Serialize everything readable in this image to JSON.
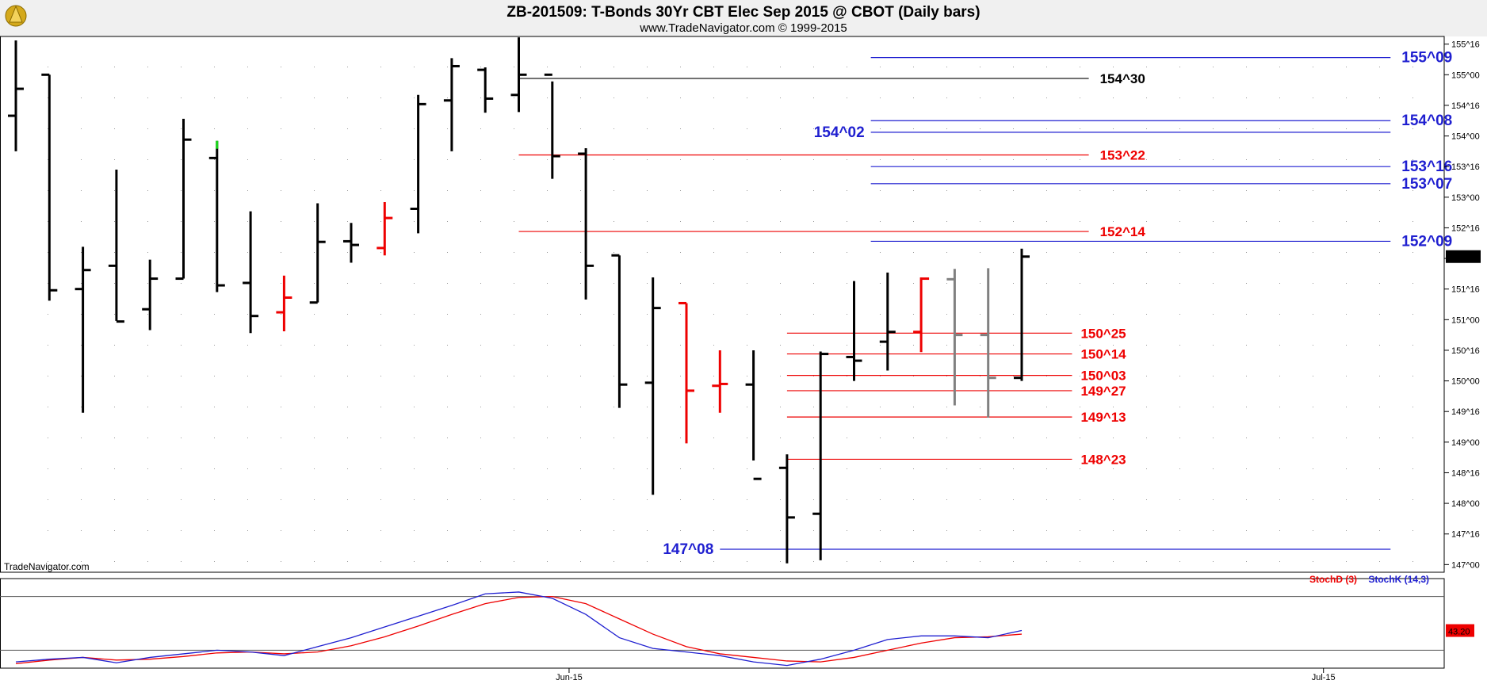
{
  "header": {
    "title": "ZB-201509:  T-Bonds 30Yr CBT Elec Sep 2015 @ CBOT  (Daily bars)",
    "subtitle": "www.TradeNavigator.com © 1999-2015"
  },
  "watermark": "TradeNavigator.com",
  "colors": {
    "bar_normal": "#000000",
    "bar_red": "#ee0000",
    "bar_gray": "#808080",
    "level_red": "#ee0000",
    "level_blue": "#1f1fd0",
    "level_black": "#000000",
    "stochK": "#1f1fd0",
    "stochD": "#ee0000"
  },
  "chart_data": {
    "type": "ohlc",
    "title": "ZB-201509:  T-Bonds 30Yr CBT Elec Sep 2015 @ CBOT  (Daily bars)",
    "price_axis": {
      "ylim": [
        146.875,
        155.625
      ],
      "tick_labels": [
        "155^16",
        "155^00",
        "154^16",
        "154^00",
        "153^16",
        "153^00",
        "152^16",
        "152^00",
        "151^16",
        "151^00",
        "150^16",
        "150^00",
        "149^16",
        "149^00",
        "148^16",
        "148^00",
        "147^16",
        "147^00"
      ],
      "tick_values": [
        155.5,
        155.0,
        154.5,
        154.0,
        153.5,
        153.0,
        152.5,
        152.0,
        151.5,
        151.0,
        150.5,
        150.0,
        149.5,
        149.0,
        148.5,
        148.0,
        147.5,
        147.0
      ]
    },
    "last_price": {
      "label": "152^01",
      "value": 152.03
    },
    "x_labels": [
      {
        "label": "Jun-15",
        "bar": 16.5
      },
      {
        "label": "Jul-15",
        "bar": 39
      }
    ],
    "bars": [
      {
        "o": 154.33,
        "h": 155.56,
        "l": 153.75,
        "c": 154.77,
        "color": "black"
      },
      {
        "o": 155.0,
        "h": 155.0,
        "l": 151.31,
        "c": 151.48,
        "color": "black"
      },
      {
        "o": 151.5,
        "h": 152.19,
        "l": 149.48,
        "c": 151.81,
        "color": "black"
      },
      {
        "o": 151.88,
        "h": 153.45,
        "l": 150.98,
        "c": 150.97,
        "color": "black"
      },
      {
        "o": 151.17,
        "h": 151.98,
        "l": 150.83,
        "c": 151.67,
        "color": "black"
      },
      {
        "o": 151.67,
        "h": 154.28,
        "l": 151.67,
        "c": 153.94,
        "color": "black"
      },
      {
        "o": 153.64,
        "h": 153.92,
        "l": 151.45,
        "c": 151.56,
        "color": "black"
      },
      {
        "o": 151.6,
        "h": 152.77,
        "l": 150.78,
        "c": 151.06,
        "color": "black"
      },
      {
        "o": 151.12,
        "h": 151.72,
        "l": 150.81,
        "c": 151.36,
        "color": "red"
      },
      {
        "o": 151.28,
        "h": 152.9,
        "l": 151.28,
        "c": 152.27,
        "color": "black"
      },
      {
        "o": 152.28,
        "h": 152.58,
        "l": 151.93,
        "c": 152.22,
        "color": "black"
      },
      {
        "o": 152.17,
        "h": 152.92,
        "l": 152.05,
        "c": 152.66,
        "color": "red"
      },
      {
        "o": 152.81,
        "h": 154.67,
        "l": 152.41,
        "c": 154.52,
        "color": "black"
      },
      {
        "o": 154.58,
        "h": 155.27,
        "l": 153.75,
        "c": 155.14,
        "color": "black"
      },
      {
        "o": 155.08,
        "h": 155.12,
        "l": 154.38,
        "c": 154.61,
        "color": "black"
      },
      {
        "o": 154.67,
        "h": 155.61,
        "l": 154.39,
        "c": 155.0,
        "color": "black"
      },
      {
        "o": 155.0,
        "h": 154.89,
        "l": 153.3,
        "c": 153.67,
        "color": "black"
      },
      {
        "o": 153.71,
        "h": 153.8,
        "l": 151.33,
        "c": 151.88,
        "color": "black"
      },
      {
        "o": 152.05,
        "h": 152.05,
        "l": 149.56,
        "c": 149.94,
        "color": "black"
      },
      {
        "o": 149.97,
        "h": 151.69,
        "l": 148.14,
        "c": 151.19,
        "color": "black"
      },
      {
        "o": 151.27,
        "h": 151.27,
        "l": 148.98,
        "c": 149.84,
        "color": "red"
      },
      {
        "o": 149.92,
        "h": 150.5,
        "l": 149.48,
        "c": 149.95,
        "color": "red"
      },
      {
        "o": 149.94,
        "h": 150.5,
        "l": 148.7,
        "c": 148.4,
        "color": "black"
      },
      {
        "o": 148.58,
        "h": 148.8,
        "l": 147.02,
        "c": 147.77,
        "color": "black"
      },
      {
        "o": 147.83,
        "h": 150.48,
        "l": 147.07,
        "c": 150.44,
        "color": "black"
      },
      {
        "o": 150.39,
        "h": 151.63,
        "l": 150.0,
        "c": 150.33,
        "color": "black"
      },
      {
        "o": 150.64,
        "h": 151.77,
        "l": 150.17,
        "c": 150.8,
        "color": "black"
      },
      {
        "o": 150.8,
        "h": 151.69,
        "l": 150.47,
        "c": 151.67,
        "color": "red"
      },
      {
        "o": 151.66,
        "h": 151.83,
        "l": 149.6,
        "c": 150.75,
        "color": "gray"
      },
      {
        "o": 150.75,
        "h": 151.84,
        "l": 149.4,
        "c": 150.05,
        "color": "gray"
      },
      {
        "o": 150.05,
        "h": 152.16,
        "l": 150.0,
        "c": 152.03,
        "color": "black"
      }
    ],
    "levels": [
      {
        "label": "155^09",
        "value": 155.28,
        "color": "blue",
        "x_from_bar": 25.5,
        "x_to_bar": 41.0,
        "label_pos": "right"
      },
      {
        "label": "154^30",
        "value": 154.94,
        "color": "black",
        "x_from_bar": 15.0,
        "x_to_bar": 32.0,
        "label_pos": "right-mid"
      },
      {
        "label": "154^08",
        "value": 154.25,
        "color": "blue",
        "x_from_bar": 25.5,
        "x_to_bar": 41.0,
        "label_pos": "right"
      },
      {
        "label": "154^02",
        "value": 154.06,
        "color": "blue",
        "x_from_bar": 25.5,
        "x_to_bar": 41.0,
        "label_pos": "left"
      },
      {
        "label": "153^22",
        "value": 153.69,
        "color": "red",
        "x_from_bar": 15.0,
        "x_to_bar": 32.0,
        "label_pos": "right-mid"
      },
      {
        "label": "153^16",
        "value": 153.5,
        "color": "blue",
        "x_from_bar": 25.5,
        "x_to_bar": 41.0,
        "label_pos": "right"
      },
      {
        "label": "153^07",
        "value": 153.22,
        "color": "blue",
        "x_from_bar": 25.5,
        "x_to_bar": 41.0,
        "label_pos": "right"
      },
      {
        "label": "152^14",
        "value": 152.44,
        "color": "red",
        "x_from_bar": 15.0,
        "x_to_bar": 32.0,
        "label_pos": "right-mid"
      },
      {
        "label": "152^09",
        "value": 152.28,
        "color": "blue",
        "x_from_bar": 25.5,
        "x_to_bar": 41.0,
        "label_pos": "right"
      },
      {
        "label": "150^25",
        "value": 150.78,
        "color": "red",
        "x_from_bar": 23.0,
        "x_to_bar": 31.5,
        "label_pos": "right-near"
      },
      {
        "label": "150^14",
        "value": 150.44,
        "color": "red",
        "x_from_bar": 23.0,
        "x_to_bar": 31.5,
        "label_pos": "right-near"
      },
      {
        "label": "150^03",
        "value": 150.09,
        "color": "red",
        "x_from_bar": 23.0,
        "x_to_bar": 31.5,
        "label_pos": "right-near"
      },
      {
        "label": "149^27",
        "value": 149.84,
        "color": "red",
        "x_from_bar": 23.0,
        "x_to_bar": 31.5,
        "label_pos": "right-near"
      },
      {
        "label": "149^13",
        "value": 149.41,
        "color": "red",
        "x_from_bar": 23.0,
        "x_to_bar": 31.5,
        "label_pos": "right-near"
      },
      {
        "label": "148^23",
        "value": 148.72,
        "color": "red",
        "x_from_bar": 23.0,
        "x_to_bar": 31.5,
        "label_pos": "right-near"
      },
      {
        "label": "147^08",
        "value": 147.25,
        "color": "blue",
        "x_from_bar": 21.0,
        "x_to_bar": 41.0,
        "label_pos": "left"
      }
    ],
    "stochastic": {
      "legend": [
        {
          "name": "StochD (3)",
          "color": "red"
        },
        {
          "name": "StochK (14,3)",
          "color": "blue"
        }
      ],
      "last_value_label": "43.20",
      "ylim": [
        0,
        100
      ],
      "levels": [
        80,
        20
      ],
      "K": [
        7,
        10,
        12,
        6,
        12,
        16,
        20,
        18,
        14,
        24,
        34,
        46,
        58,
        70,
        83,
        85,
        78,
        60,
        34,
        22,
        18,
        14,
        7,
        3,
        10,
        20,
        32,
        36,
        36,
        34,
        42
      ],
      "D": [
        5,
        9,
        12,
        9,
        10,
        13,
        17,
        18,
        16,
        18,
        25,
        35,
        47,
        60,
        72,
        79,
        80,
        72,
        55,
        38,
        24,
        16,
        12,
        8,
        7,
        12,
        20,
        28,
        34,
        35,
        38
      ]
    }
  }
}
